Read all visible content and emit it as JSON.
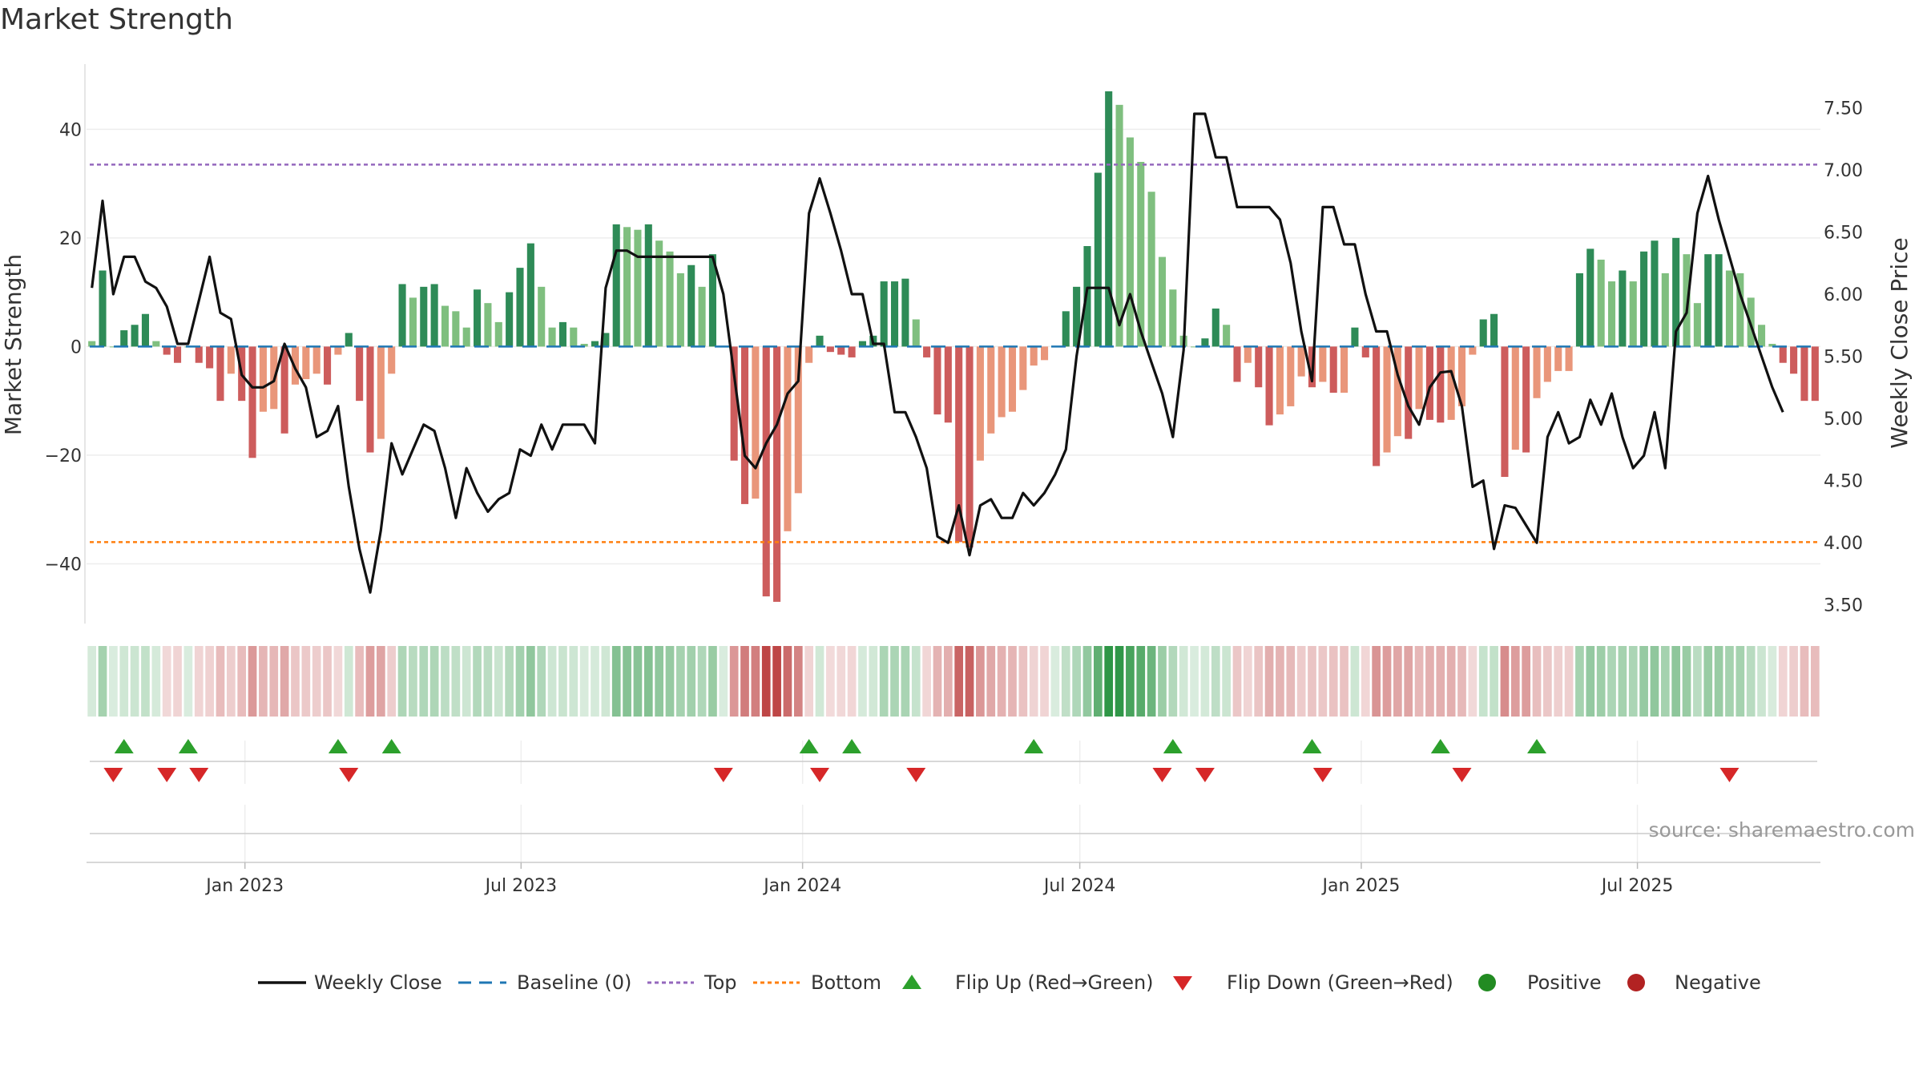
{
  "title": "Market Strength",
  "source": "source: sharemaestro.com",
  "colors": {
    "strong_green": "#2e8b57",
    "light_green": "#7fbf7f",
    "strong_red": "#cd5c5c",
    "light_red": "#e9967a",
    "price_line": "#111111",
    "baseline": "#1f77b4",
    "top": "#9467bd",
    "bottom": "#ff7f0e",
    "flip_up": "#2ca02c",
    "flip_down": "#d62728",
    "positive": "#228b22",
    "negative": "#b22222"
  },
  "chart_data": {
    "type": "bar+line",
    "title": "Market Strength",
    "y_left_label": "Market Strength",
    "y_right_label": "Weekly Close Price",
    "y_left_ticks": [
      40,
      20,
      0,
      -20,
      -40
    ],
    "y_left_tick_labels": [
      "40",
      "20",
      "0",
      "−20",
      "−40"
    ],
    "y_left_range": [
      -51,
      52
    ],
    "y_right_ticks": [
      7.5,
      7.0,
      6.5,
      6.0,
      5.5,
      5.0,
      4.5,
      4.0,
      3.5
    ],
    "y_right_tick_labels": [
      "7.50",
      "7.00",
      "6.50",
      "6.00",
      "5.50",
      "5.00",
      "4.50",
      "4.00",
      "3.50"
    ],
    "y_right_range": [
      3.35,
      7.85
    ],
    "x_tick_labels": [
      "Jan 2023",
      "Jul 2023",
      "Jan 2024",
      "Jul 2024",
      "Jan 2025",
      "Jul 2025"
    ],
    "x_tick_weeks": [
      14.3,
      40.1,
      66.4,
      92.3,
      118.6,
      144.4
    ],
    "top_level": 33.5,
    "bottom_level": -36.0,
    "baseline_level": 0,
    "strength": [
      1,
      14,
      0,
      3,
      4,
      6,
      1,
      -1.5,
      -3,
      0,
      -3,
      -4,
      -10,
      -5,
      -10,
      -20.5,
      -12,
      -11.5,
      -16,
      -7,
      -6,
      -5,
      -7,
      -1.5,
      2.5,
      -10,
      -19.5,
      -17,
      -5,
      11.5,
      9,
      11,
      11.5,
      7.5,
      6.5,
      3.5,
      10.5,
      8,
      4.5,
      10,
      14.5,
      19,
      11,
      3.5,
      4.5,
      3.5,
      0.5,
      1,
      2.5,
      22.5,
      22,
      21.5,
      22.5,
      19.5,
      17.5,
      13.5,
      15,
      11,
      17,
      0,
      -21,
      -29,
      -28,
      -46,
      -47,
      -34,
      -27,
      -3,
      2,
      -1,
      -1.5,
      -2,
      1,
      2,
      12,
      12,
      12.5,
      5,
      -2,
      -12.5,
      -14,
      -36,
      -37,
      -21,
      -16,
      -13,
      -12,
      -8,
      -3.5,
      -2.5,
      0,
      6.5,
      11,
      18.5,
      32,
      47,
      44.5,
      38.5,
      34,
      28.5,
      16.5,
      10.5,
      2,
      0,
      1.5,
      7,
      4,
      -6.5,
      -3,
      -7.5,
      -14.5,
      -12.5,
      -11,
      -5.5,
      -7.5,
      -6.5,
      -8.5,
      -8.5,
      3.5,
      -2,
      -22,
      -19.5,
      -16.5,
      -17,
      -11.5,
      -13.5,
      -14,
      -13.5,
      -11,
      -1.5,
      5,
      6,
      -24,
      -19,
      -19.5,
      -9.5,
      -6.5,
      -4.5,
      -4.5,
      13.5,
      18,
      16,
      12,
      14,
      12,
      17.5,
      19.5,
      13.5,
      20,
      17,
      8,
      17,
      17,
      14,
      13.5,
      9,
      4,
      0.5,
      -3,
      -5,
      -10,
      -10
    ],
    "close": [
      6.05,
      6.75,
      6.0,
      6.3,
      6.3,
      6.1,
      6.05,
      5.9,
      5.6,
      5.6,
      5.95,
      6.3,
      5.85,
      5.8,
      5.35,
      5.25,
      5.25,
      5.3,
      5.6,
      5.4,
      5.25,
      4.85,
      4.9,
      5.1,
      4.45,
      3.95,
      3.6,
      4.1,
      4.8,
      4.55,
      4.75,
      4.95,
      4.9,
      4.6,
      4.2,
      4.6,
      4.4,
      4.25,
      4.35,
      4.4,
      4.75,
      4.7,
      4.95,
      4.75,
      4.95,
      4.95,
      4.95,
      4.8,
      6.05,
      6.35,
      6.35,
      6.3,
      6.3,
      6.3,
      6.3,
      6.3,
      6.3,
      6.3,
      6.3,
      6.0,
      5.35,
      4.7,
      4.6,
      4.8,
      4.95,
      5.2,
      5.3,
      6.65,
      6.93,
      6.65,
      6.35,
      6.0,
      6.0,
      5.6,
      5.6,
      5.05,
      5.05,
      4.85,
      4.6,
      4.05,
      4.0,
      4.3,
      3.9,
      4.3,
      4.35,
      4.2,
      4.2,
      4.4,
      4.3,
      4.4,
      4.55,
      4.75,
      5.5,
      6.05,
      6.05,
      6.05,
      5.75,
      6.0,
      5.7,
      5.45,
      5.2,
      4.85,
      5.55,
      7.45,
      7.45,
      7.1,
      7.1,
      6.7,
      6.7,
      6.7,
      6.7,
      6.6,
      6.25,
      5.7,
      5.3,
      6.7,
      6.7,
      6.4,
      6.4,
      6.0,
      5.7,
      5.7,
      5.35,
      5.1,
      4.95,
      5.25,
      5.37,
      5.38,
      5.1,
      4.45,
      4.5,
      3.95,
      4.3,
      4.28,
      4.14,
      4.0,
      4.85,
      5.05,
      4.8,
      4.85,
      5.15,
      4.95,
      5.2,
      4.85,
      4.6,
      4.7,
      5.05,
      4.6,
      5.7,
      5.85,
      6.65,
      6.95,
      6.6,
      6.3,
      6.0,
      5.75,
      5.5,
      5.25,
      5.05
    ],
    "flip_up_weeks": [
      3,
      9,
      23,
      28,
      67,
      71,
      88,
      101,
      114,
      126,
      135
    ],
    "flip_down_weeks": [
      2,
      7,
      10,
      24,
      59,
      68,
      77,
      100,
      104,
      115,
      128,
      153
    ],
    "legend": [
      "Weekly Close",
      "Baseline (0)",
      "Top",
      "Bottom",
      "Flip Up (Red→Green)",
      "Flip Down (Green→Red)",
      "Positive",
      "Negative"
    ]
  }
}
